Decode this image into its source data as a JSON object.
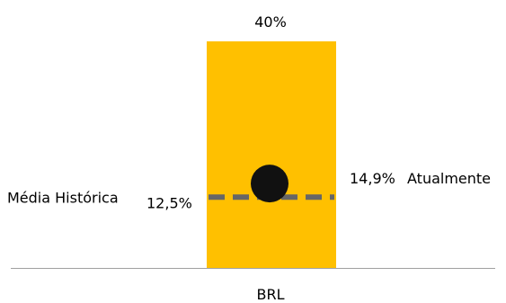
{
  "chart_data": {
    "type": "bar",
    "categories": [
      "BRL"
    ],
    "ylim": [
      0,
      40
    ],
    "series": [
      {
        "values": [
          40
        ],
        "color": "#FFC000"
      }
    ],
    "data_labels": [
      "40%"
    ],
    "current": {
      "value": 14.9,
      "label_value": "14,9%",
      "label_text": "Atualmente",
      "color": "#111111"
    },
    "historical_mean": {
      "value": 12.5,
      "label_value": "12,5%",
      "label_text": "Média Histórica",
      "color": "#666666"
    },
    "title": "",
    "xlabel": "",
    "ylabel": "",
    "grid": false,
    "legend": "none"
  }
}
